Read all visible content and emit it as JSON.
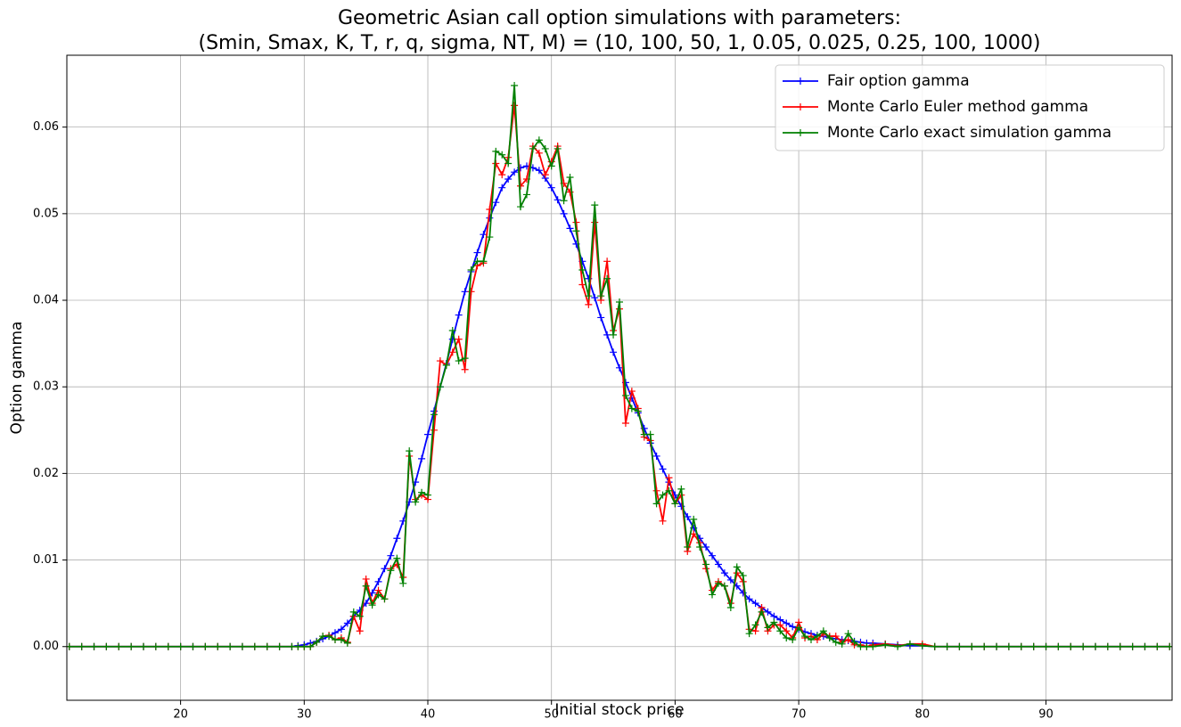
{
  "chart_data": {
    "type": "line",
    "title": "Geometric Asian call option simulations with parameters:",
    "subtitle": "(Smin, Smax, K, T, r, q, sigma, NT, M) = (10, 100, 50, 1, 0.05, 0.025, 0.25, 100, 1000)",
    "x_label": "Initial stock price",
    "y_label": "Option gamma",
    "xlim": [
      10.8,
      100.2
    ],
    "ylim": [
      -0.0062,
      0.0683
    ],
    "xticks": [
      20,
      30,
      40,
      50,
      60,
      70,
      80,
      90
    ],
    "yticks": [
      {
        "value": 0,
        "label": "0.00"
      },
      0.01,
      0.02,
      0.03,
      0.04,
      0.05,
      0.06
    ],
    "grid": true,
    "legend": "upper right",
    "x": [
      11,
      12,
      13,
      14,
      15,
      16,
      17,
      18,
      19,
      20,
      21,
      22,
      23,
      24,
      25,
      26,
      27,
      28,
      29,
      29.5,
      30,
      30.5,
      31,
      31.5,
      32,
      32.5,
      33,
      33.5,
      34,
      34.5,
      35,
      35.5,
      36,
      36.5,
      37,
      37.5,
      38,
      38.5,
      39,
      39.5,
      40,
      40.5,
      41,
      41.5,
      42,
      42.5,
      43,
      43.5,
      44,
      44.5,
      45,
      45.5,
      46,
      46.5,
      47,
      47.5,
      48,
      48.5,
      49,
      49.5,
      50,
      50.5,
      51,
      51.5,
      52,
      52.5,
      53,
      53.5,
      54,
      54.5,
      55,
      55.5,
      56,
      56.5,
      57,
      57.5,
      58,
      58.5,
      59,
      59.5,
      60,
      60.5,
      61,
      61.5,
      62,
      62.5,
      63,
      63.5,
      64,
      64.5,
      65,
      65.5,
      66,
      66.5,
      67,
      67.5,
      68,
      68.5,
      69,
      69.5,
      70,
      70.5,
      71,
      71.5,
      72,
      72.5,
      73,
      73.5,
      74,
      74.5,
      75,
      75.5,
      76,
      77,
      78,
      79,
      80,
      81,
      82,
      83,
      84,
      85,
      86,
      87,
      88,
      89,
      90,
      91,
      92,
      93,
      94,
      95,
      96,
      97,
      98,
      99,
      100
    ],
    "series": [
      {
        "name": "Fair option gamma",
        "color": "#0000ff",
        "values": [
          0,
          0,
          0,
          0,
          0,
          0,
          0,
          0,
          0,
          0,
          0,
          0,
          0,
          0,
          0,
          0,
          0,
          0,
          0,
          0.0001,
          0.0002,
          0.0004,
          0.0006,
          0.0009,
          0.0012,
          0.0016,
          0.002,
          0.0027,
          0.0035,
          0.0042,
          0.005,
          0.0062,
          0.0075,
          0.009,
          0.0105,
          0.0125,
          0.0145,
          0.0167,
          0.019,
          0.0217,
          0.0245,
          0.0272,
          0.03,
          0.0327,
          0.0355,
          0.0383,
          0.041,
          0.0433,
          0.0455,
          0.0476,
          0.0495,
          0.0513,
          0.053,
          0.054,
          0.0548,
          0.0553,
          0.0555,
          0.0553,
          0.055,
          0.0541,
          0.053,
          0.0516,
          0.05,
          0.0483,
          0.0465,
          0.0445,
          0.0425,
          0.0403,
          0.038,
          0.036,
          0.034,
          0.0322,
          0.0305,
          0.0287,
          0.027,
          0.0252,
          0.0235,
          0.022,
          0.0205,
          0.019,
          0.0175,
          0.0162,
          0.015,
          0.0137,
          0.0125,
          0.0115,
          0.0105,
          0.0095,
          0.0085,
          0.0077,
          0.007,
          0.0062,
          0.0055,
          0.005,
          0.0045,
          0.004,
          0.0035,
          0.0031,
          0.0027,
          0.0023,
          0.002,
          0.0017,
          0.0015,
          0.0013,
          0.0012,
          0.001,
          0.0009,
          0.0008,
          0.0007,
          0.0006,
          0.0005,
          0.0004,
          0.0004,
          0.0003,
          0.0002,
          0.0001,
          0.0001,
          0,
          0,
          0,
          0,
          0,
          0,
          0,
          0,
          0,
          0,
          0,
          0,
          0,
          0,
          0,
          0,
          0,
          0,
          0,
          0
        ]
      },
      {
        "name": "Monte Carlo Euler method gamma",
        "color": "#ff0000",
        "values": [
          0,
          0,
          0,
          0,
          0,
          0,
          0,
          0,
          0,
          0,
          0,
          0,
          0,
          0,
          0,
          0,
          0,
          0,
          0,
          0,
          0,
          0,
          0.0005,
          0.0012,
          0.0013,
          0.0008,
          0.001,
          0.0005,
          0.0035,
          0.0018,
          0.0078,
          0.005,
          0.0065,
          0.0055,
          0.009,
          0.0095,
          0.008,
          0.022,
          0.017,
          0.0175,
          0.017,
          0.025,
          0.033,
          0.0325,
          0.034,
          0.0355,
          0.032,
          0.041,
          0.044,
          0.0443,
          0.0505,
          0.0558,
          0.0545,
          0.0565,
          0.0625,
          0.0532,
          0.054,
          0.0578,
          0.057,
          0.0545,
          0.056,
          0.0578,
          0.0535,
          0.0525,
          0.049,
          0.0418,
          0.0395,
          0.049,
          0.04,
          0.0445,
          0.0365,
          0.039,
          0.0258,
          0.0295,
          0.0275,
          0.0242,
          0.0238,
          0.018,
          0.0145,
          0.0195,
          0.0165,
          0.0175,
          0.011,
          0.013,
          0.012,
          0.009,
          0.0065,
          0.0075,
          0.007,
          0.005,
          0.0085,
          0.0075,
          0.002,
          0.0018,
          0.0045,
          0.0018,
          0.0025,
          0.0025,
          0.0018,
          0.001,
          0.0028,
          0.001,
          0.0012,
          0.0008,
          0.0015,
          0.0012,
          0.0012,
          0.0005,
          0.0008,
          0.0002,
          0.0002,
          0,
          0.0002,
          0.0003,
          0.0001,
          0.0003,
          0.0003,
          0,
          0,
          0,
          0,
          0,
          0,
          0,
          0,
          0,
          0,
          0,
          0,
          0,
          0,
          0,
          0,
          0,
          0,
          0,
          0
        ]
      },
      {
        "name": "Monte Carlo exact simulation gamma",
        "color": "#008000",
        "values": [
          0,
          0,
          0,
          0,
          0,
          0,
          0,
          0,
          0,
          0,
          0,
          0,
          0,
          0,
          0,
          0,
          0,
          0,
          0,
          0,
          0,
          0,
          0.0005,
          0.0012,
          0.0012,
          0.0008,
          0.0008,
          0.0004,
          0.004,
          0.0035,
          0.007,
          0.0048,
          0.006,
          0.0055,
          0.0088,
          0.0102,
          0.0073,
          0.0226,
          0.0167,
          0.0178,
          0.0175,
          0.0268,
          0.03,
          0.0325,
          0.0365,
          0.033,
          0.0333,
          0.0435,
          0.0445,
          0.0445,
          0.0473,
          0.0572,
          0.0568,
          0.0558,
          0.0648,
          0.0508,
          0.0522,
          0.0575,
          0.0585,
          0.0575,
          0.0555,
          0.0575,
          0.0515,
          0.0542,
          0.048,
          0.0435,
          0.0405,
          0.051,
          0.0405,
          0.0425,
          0.036,
          0.0398,
          0.029,
          0.0275,
          0.0272,
          0.0245,
          0.0245,
          0.0165,
          0.0175,
          0.018,
          0.0165,
          0.0182,
          0.0115,
          0.0147,
          0.0115,
          0.0095,
          0.006,
          0.0073,
          0.007,
          0.0045,
          0.0092,
          0.0082,
          0.0015,
          0.0025,
          0.004,
          0.0022,
          0.0028,
          0.0018,
          0.001,
          0.0008,
          0.0022,
          0.0012,
          0.0008,
          0.0012,
          0.0018,
          0.001,
          0.0005,
          0.0003,
          0.0015,
          0.0005,
          0,
          0,
          0,
          0.0002,
          0,
          0.0003,
          0.0001,
          0,
          0,
          0,
          0,
          0,
          0,
          0,
          0,
          0,
          0,
          0,
          0,
          0,
          0,
          0,
          0,
          0,
          0,
          0,
          0
        ]
      }
    ]
  }
}
